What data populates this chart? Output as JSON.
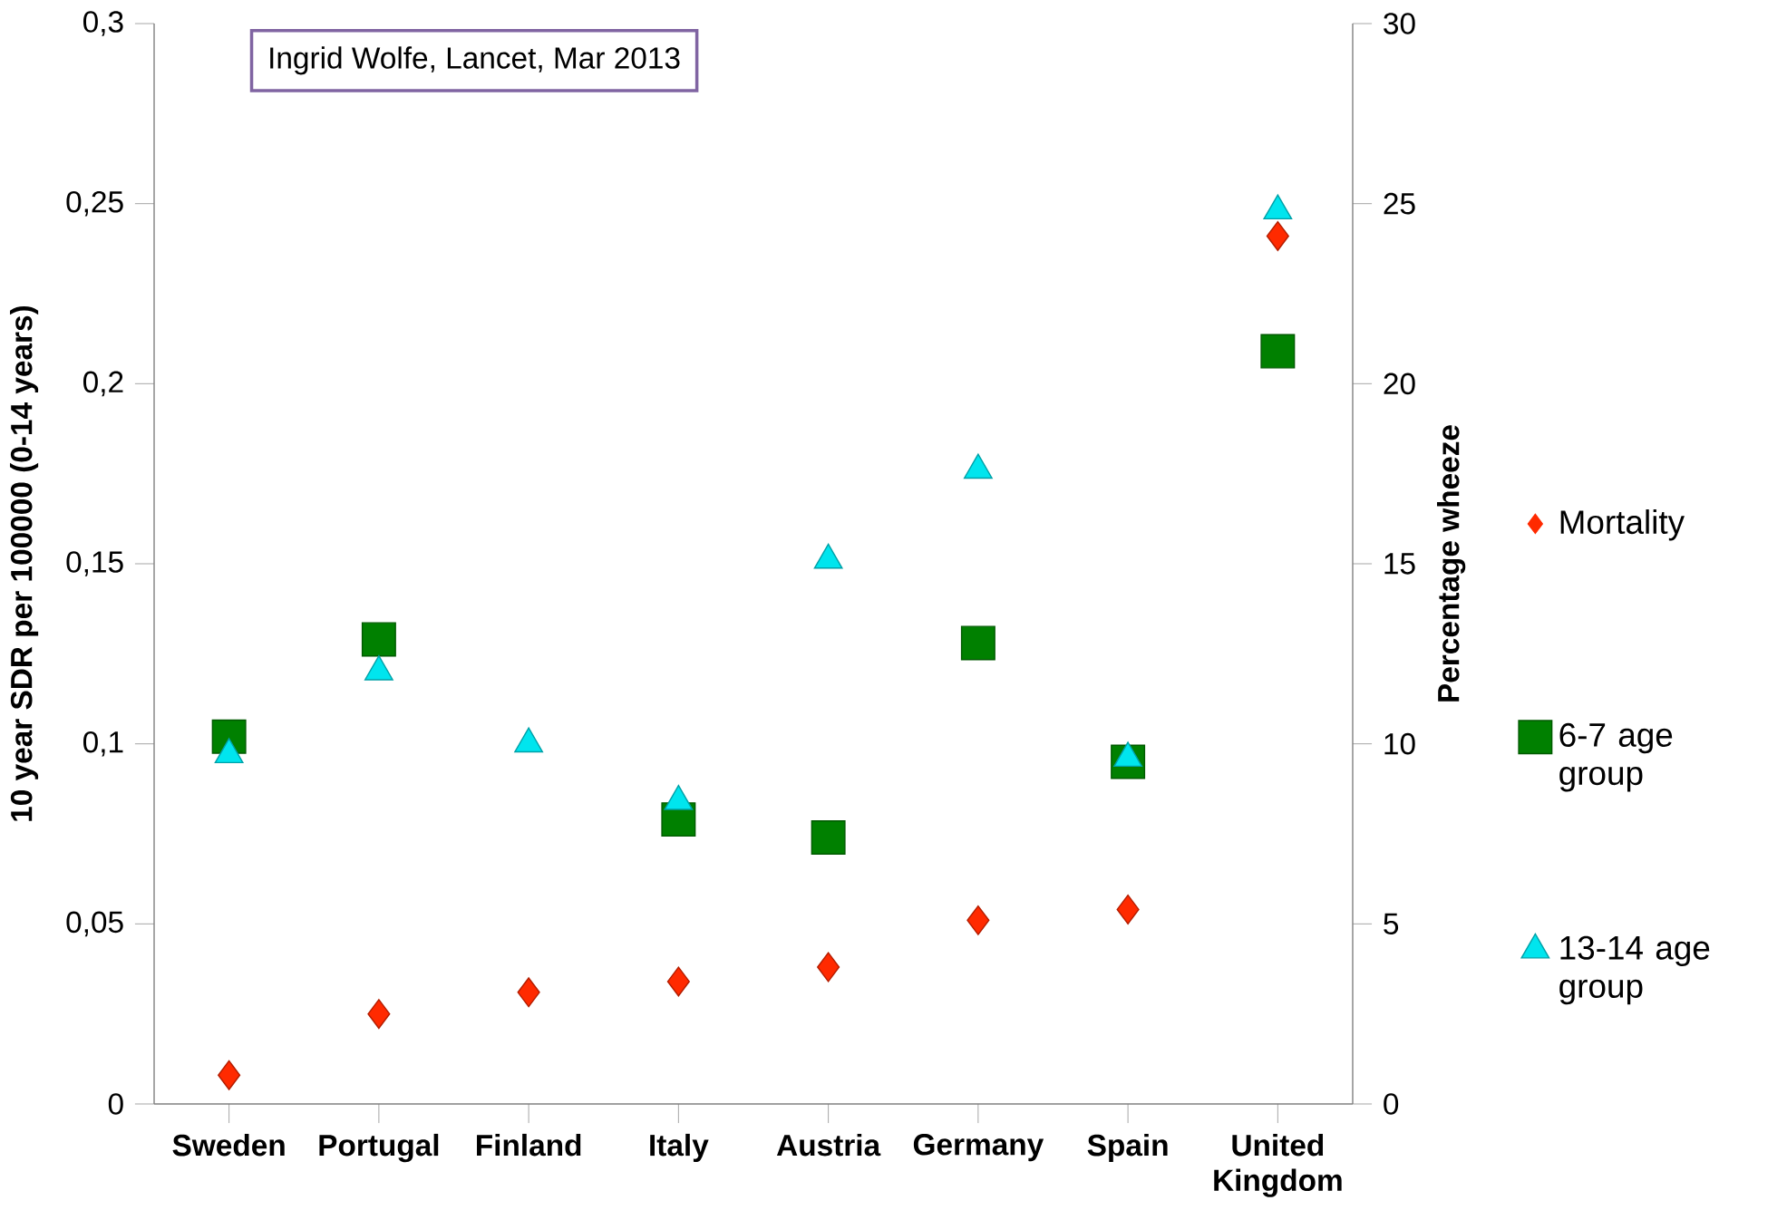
{
  "chart_data": {
    "type": "scatter",
    "categories": [
      "Sweden",
      "Portugal",
      "Finland",
      "Italy",
      "Austria",
      "Germany",
      "Spain",
      "United Kingdom"
    ],
    "series": [
      {
        "name": "Mortality",
        "color": "#ff2a00",
        "marker": "diamond",
        "values": [
          0.008,
          0.025,
          0.031,
          0.034,
          0.038,
          0.051,
          0.054,
          0.241
        ]
      },
      {
        "name": "6-7 age group",
        "color": "#008000",
        "marker": "square",
        "axis": "y2",
        "values": [
          10.2,
          12.9,
          null,
          7.9,
          7.4,
          12.8,
          9.5,
          20.9
        ]
      },
      {
        "name": "13-14 age group",
        "color": "#00e5ee",
        "marker": "triangle",
        "axis": "y2",
        "values": [
          9.7,
          12.0,
          10.0,
          8.4,
          15.1,
          17.6,
          9.6,
          24.8
        ]
      }
    ],
    "ylabel": "10 year SDR per 100000 (0-14 years)",
    "y2label": "Percentage wheeze",
    "ylim": [
      0,
      0.3
    ],
    "yticks": [
      {
        "value": 0,
        "label": "0"
      },
      {
        "value": 0.05,
        "label": "0,05"
      },
      {
        "value": 0.1,
        "label": "0,1"
      },
      {
        "value": 0.15,
        "label": "0,15"
      },
      {
        "value": 0.2,
        "label": "0,2"
      },
      {
        "value": 0.25,
        "label": "0,25"
      },
      {
        "value": 0.3,
        "label": "0,3"
      }
    ],
    "y2lim": [
      0,
      30
    ],
    "y2ticks": [
      0,
      5,
      10,
      15,
      20,
      25,
      30
    ],
    "annotations": [
      "Ingrid Wolfe, Lancet, Mar 2013"
    ],
    "legend": "right",
    "grid": false
  }
}
